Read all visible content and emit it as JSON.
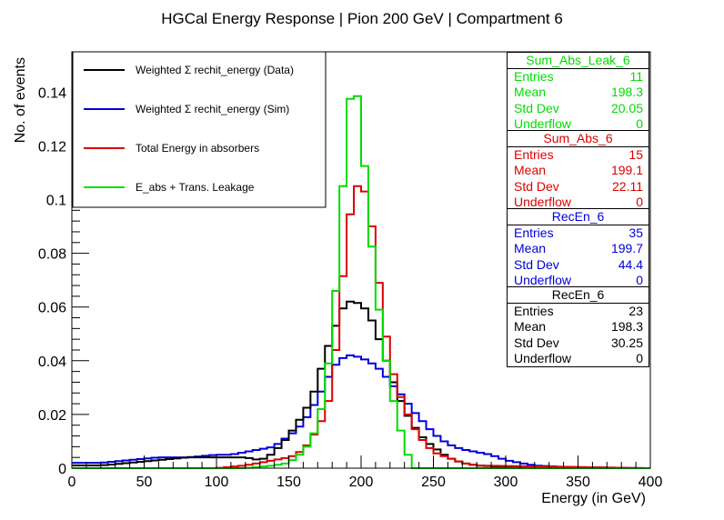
{
  "chart_data": {
    "type": "line",
    "title": "HGCal Energy Response | Pion 200 GeV | Compartment 6",
    "xlabel": "Energy (in GeV)",
    "ylabel": "No. of events",
    "xlim": [
      0,
      400
    ],
    "ylim": [
      0,
      0.155
    ],
    "x_ticks": [
      "0",
      "50",
      "100",
      "150",
      "200",
      "250",
      "300",
      "350",
      "400"
    ],
    "y_ticks": [
      "0",
      "0.02",
      "0.04",
      "0.06",
      "0.08",
      "0.1",
      "0.12",
      "0.14"
    ],
    "grid": false,
    "legend_position": "top-left",
    "series": [
      {
        "name": "Weighted Σ rechit_energy (Data)",
        "color": "#000000",
        "x": [
          0,
          20,
          40,
          60,
          80,
          100,
          110,
          120,
          130,
          135,
          140,
          145,
          150,
          155,
          160,
          165,
          170,
          175,
          180,
          185,
          190,
          195,
          200,
          205,
          210,
          215,
          220,
          225,
          230,
          235,
          240,
          245,
          250,
          255,
          260,
          265,
          270,
          280,
          300,
          320,
          400
        ],
        "y": [
          0.001,
          0.001,
          0.002,
          0.003,
          0.004,
          0.004,
          0.004,
          0.004,
          0.003,
          0.004,
          0.006,
          0.009,
          0.012,
          0.016,
          0.02,
          0.025,
          0.032,
          0.042,
          0.049,
          0.057,
          0.062,
          0.062,
          0.061,
          0.058,
          0.052,
          0.044,
          0.036,
          0.028,
          0.022,
          0.017,
          0.013,
          0.01,
          0.008,
          0.006,
          0.004,
          0.003,
          0.002,
          0.001,
          0.0005,
          0,
          0
        ]
      },
      {
        "name": "Weighted Σ rechit_energy (Sim)",
        "color": "#0000dd",
        "x": [
          0,
          20,
          40,
          60,
          80,
          100,
          110,
          120,
          130,
          140,
          145,
          150,
          155,
          160,
          165,
          170,
          175,
          180,
          185,
          190,
          195,
          200,
          205,
          210,
          215,
          220,
          225,
          230,
          235,
          240,
          245,
          250,
          255,
          260,
          265,
          270,
          280,
          290,
          300,
          320,
          340,
          400
        ],
        "y": [
          0.002,
          0.002,
          0.003,
          0.004,
          0.004,
          0.005,
          0.005,
          0.006,
          0.007,
          0.008,
          0.01,
          0.012,
          0.014,
          0.017,
          0.021,
          0.026,
          0.031,
          0.037,
          0.04,
          0.042,
          0.042,
          0.041,
          0.04,
          0.038,
          0.036,
          0.032,
          0.029,
          0.026,
          0.022,
          0.019,
          0.016,
          0.013,
          0.011,
          0.009,
          0.008,
          0.007,
          0.006,
          0.005,
          0.003,
          0.001,
          0.0005,
          0
        ]
      },
      {
        "name": "Total Energy in absorbers",
        "color": "#dd0000",
        "x": [
          0,
          100,
          120,
          130,
          140,
          150,
          155,
          160,
          165,
          170,
          175,
          180,
          185,
          190,
          195,
          200,
          205,
          210,
          215,
          220,
          225,
          230,
          235,
          240,
          245,
          250,
          260,
          270,
          280,
          400
        ],
        "y": [
          0,
          0,
          0.001,
          0.002,
          0.003,
          0.004,
          0.005,
          0.007,
          0.01,
          0.015,
          0.02,
          0.03,
          0.058,
          0.085,
          0.104,
          0.106,
          0.1,
          0.08,
          0.058,
          0.04,
          0.03,
          0.023,
          0.017,
          0.012,
          0.009,
          0.006,
          0.004,
          0.002,
          0.001,
          0
        ]
      },
      {
        "name": "E_abs + Trans. Leakage",
        "color": "#00dd00",
        "x": [
          0,
          120,
          140,
          150,
          155,
          160,
          165,
          170,
          175,
          180,
          185,
          190,
          195,
          200,
          205,
          210,
          215,
          220,
          225,
          230,
          235,
          240,
          400
        ],
        "y": [
          0,
          0,
          0.001,
          0.002,
          0.004,
          0.006,
          0.01,
          0.016,
          0.028,
          0.05,
          0.082,
          0.128,
          0.147,
          0.13,
          0.095,
          0.07,
          0.048,
          0.032,
          0.018,
          0.01,
          0,
          0,
          0
        ]
      }
    ]
  },
  "statboxes": [
    {
      "title": "Sum_Abs_Leak_6",
      "color": "#00dd00",
      "rows": [
        {
          "label": "Entries",
          "value": "11"
        },
        {
          "label": "Mean",
          "value": "198.3"
        },
        {
          "label": "Std Dev",
          "value": "20.05"
        },
        {
          "label": "Underflow",
          "value": "0"
        }
      ]
    },
    {
      "title": "Sum_Abs_6",
      "color": "#dd0000",
      "rows": [
        {
          "label": "Entries",
          "value": "15"
        },
        {
          "label": "Mean",
          "value": "199.1"
        },
        {
          "label": "Std Dev",
          "value": "22.11"
        },
        {
          "label": "Underflow",
          "value": "0"
        }
      ]
    },
    {
      "title": "RecEn_6",
      "color": "#0000dd",
      "rows": [
        {
          "label": "Entries",
          "value": "35"
        },
        {
          "label": "Mean",
          "value": "199.7"
        },
        {
          "label": "Std Dev",
          "value": "44.4"
        },
        {
          "label": "Underflow",
          "value": "0"
        }
      ]
    },
    {
      "title": "RecEn_6",
      "color": "#000000",
      "rows": [
        {
          "label": "Entries",
          "value": "23"
        },
        {
          "label": "Mean",
          "value": "198.3"
        },
        {
          "label": "Std Dev",
          "value": "30.25"
        },
        {
          "label": "Underflow",
          "value": "0"
        }
      ]
    }
  ]
}
